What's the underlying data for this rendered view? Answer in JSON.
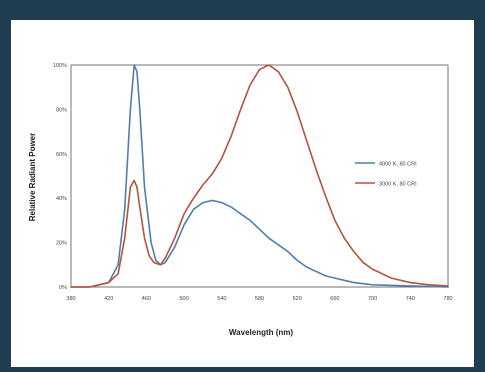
{
  "colors": {
    "frame": "#1f3d4f",
    "panel": "#ffffff",
    "grid": "#d9d9d9",
    "axis": "#555555",
    "series_blue": "#4f7fb0",
    "series_red": "#b5533c"
  },
  "chart_data": {
    "type": "line",
    "title": "",
    "xlabel": "Wavelength (nm)",
    "ylabel": "Relative Radiant Power",
    "xlim": [
      380,
      780
    ],
    "ylim": [
      0,
      100
    ],
    "x_ticks": [
      380,
      420,
      460,
      500,
      540,
      580,
      620,
      660,
      700,
      740,
      780
    ],
    "y_ticks": [
      0,
      20,
      40,
      60,
      80,
      100
    ],
    "x_tick_labels": [
      "380",
      "420",
      "460",
      "500",
      "540",
      "580",
      "620",
      "660",
      "700",
      "740",
      "780"
    ],
    "y_tick_labels": [
      "0%",
      "20%",
      "40%",
      "60%",
      "80%",
      "100%"
    ],
    "grid": true,
    "legend": "right",
    "series": [
      {
        "name": "4000 K, 80 CRI",
        "color": "#4f7fb0",
        "points": [
          [
            380,
            0
          ],
          [
            400,
            0
          ],
          [
            420,
            2
          ],
          [
            430,
            10
          ],
          [
            437,
            35
          ],
          [
            443,
            80
          ],
          [
            447,
            100
          ],
          [
            450,
            97
          ],
          [
            453,
            80
          ],
          [
            458,
            45
          ],
          [
            465,
            20
          ],
          [
            470,
            12
          ],
          [
            475,
            10
          ],
          [
            480,
            11
          ],
          [
            490,
            18
          ],
          [
            500,
            28
          ],
          [
            510,
            35
          ],
          [
            520,
            38
          ],
          [
            530,
            39
          ],
          [
            540,
            38
          ],
          [
            550,
            36
          ],
          [
            560,
            33
          ],
          [
            570,
            30
          ],
          [
            580,
            26
          ],
          [
            590,
            22
          ],
          [
            600,
            19
          ],
          [
            610,
            16
          ],
          [
            620,
            12
          ],
          [
            630,
            9
          ],
          [
            640,
            7
          ],
          [
            650,
            5
          ],
          [
            660,
            4
          ],
          [
            680,
            2
          ],
          [
            700,
            1
          ],
          [
            740,
            0.5
          ],
          [
            780,
            0
          ]
        ]
      },
      {
        "name": "3000 K, 80 CRI",
        "color": "#b5533c",
        "points": [
          [
            380,
            0
          ],
          [
            400,
            0
          ],
          [
            420,
            2
          ],
          [
            430,
            6
          ],
          [
            437,
            22
          ],
          [
            443,
            45
          ],
          [
            447,
            48
          ],
          [
            450,
            45
          ],
          [
            453,
            36
          ],
          [
            458,
            22
          ],
          [
            463,
            14
          ],
          [
            468,
            11
          ],
          [
            475,
            10
          ],
          [
            480,
            13
          ],
          [
            490,
            22
          ],
          [
            500,
            33
          ],
          [
            510,
            40
          ],
          [
            520,
            46
          ],
          [
            530,
            51
          ],
          [
            540,
            58
          ],
          [
            550,
            68
          ],
          [
            560,
            80
          ],
          [
            570,
            91
          ],
          [
            580,
            98
          ],
          [
            590,
            100
          ],
          [
            600,
            97
          ],
          [
            610,
            90
          ],
          [
            620,
            79
          ],
          [
            630,
            66
          ],
          [
            640,
            53
          ],
          [
            650,
            41
          ],
          [
            660,
            30
          ],
          [
            670,
            22
          ],
          [
            680,
            16
          ],
          [
            690,
            11
          ],
          [
            700,
            8
          ],
          [
            720,
            4
          ],
          [
            740,
            2
          ],
          [
            760,
            1
          ],
          [
            780,
            0.5
          ]
        ]
      }
    ]
  }
}
